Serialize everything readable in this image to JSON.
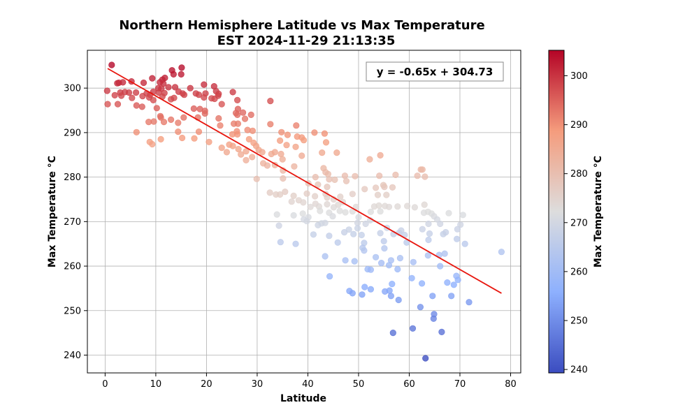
{
  "chart_data": {
    "type": "scatter",
    "title_line1": "Northern Hemisphere Latitude vs Max Temperature",
    "title_line2": "EST 2024-11-29 21:13:35",
    "xlabel": "Latitude",
    "ylabel": "Max Temperature °C",
    "colorbar_label": "Max Temperature °C",
    "xlim": [
      -3.5,
      82
    ],
    "ylim": [
      236,
      308.5
    ],
    "xticks": [
      0,
      10,
      20,
      30,
      40,
      50,
      60,
      70,
      80
    ],
    "yticks": [
      240,
      250,
      260,
      270,
      280,
      290,
      300
    ],
    "colorbar_ticks": [
      240,
      250,
      260,
      270,
      280,
      290,
      300
    ],
    "color_range": [
      239.3,
      305.2
    ],
    "colormap": "coolwarm",
    "grid": true,
    "regression": {
      "slope": -0.65,
      "intercept": 304.73,
      "x_start": 0.5,
      "x_end": 78.2,
      "color": "#e8160e",
      "equation_text": "y = -0.65x + 304.73",
      "annotation_placement": "top-right"
    },
    "points": [
      [
        1.3,
        305.2
      ],
      [
        15.1,
        304.6
      ],
      [
        13.2,
        304.0
      ],
      [
        15.0,
        303.1
      ],
      [
        13.5,
        303.1
      ],
      [
        9.3,
        302.2
      ],
      [
        11.8,
        302.3
      ],
      [
        11.3,
        301.9
      ],
      [
        5.2,
        301.5
      ],
      [
        3.5,
        301.3
      ],
      [
        2.7,
        301.2
      ],
      [
        2.4,
        301.1
      ],
      [
        7.6,
        301.2
      ],
      [
        10.8,
        301.3
      ],
      [
        11.5,
        301.0
      ],
      [
        12.5,
        300.2
      ],
      [
        13.8,
        300.2
      ],
      [
        10.5,
        300.0
      ],
      [
        11.1,
        299.9
      ],
      [
        16.8,
        300.0
      ],
      [
        19.5,
        300.8
      ],
      [
        21.5,
        300.4
      ],
      [
        0.4,
        299.4
      ],
      [
        3.0,
        299.0
      ],
      [
        3.9,
        299.1
      ],
      [
        4.7,
        299.0
      ],
      [
        6.1,
        299.0
      ],
      [
        8.2,
        298.8
      ],
      [
        8.9,
        298.5
      ],
      [
        9.5,
        299.2
      ],
      [
        10.6,
        299.0
      ],
      [
        11.7,
        298.9
      ],
      [
        14.5,
        299.2
      ],
      [
        15.3,
        298.8
      ],
      [
        17.9,
        298.8
      ],
      [
        19.8,
        298.8
      ],
      [
        21.9,
        299.3
      ],
      [
        22.4,
        298.7
      ],
      [
        25.2,
        299.1
      ],
      [
        1.9,
        298.4
      ],
      [
        3.2,
        298.3
      ],
      [
        5.3,
        297.8
      ],
      [
        7.4,
        298.2
      ],
      [
        8.7,
        297.9
      ],
      [
        9.5,
        297.3
      ],
      [
        11.3,
        298.1
      ],
      [
        13.0,
        297.5
      ],
      [
        13.6,
        297.8
      ],
      [
        15.6,
        298.5
      ],
      [
        18.5,
        298.5
      ],
      [
        19.5,
        297.9
      ],
      [
        21.0,
        297.7
      ],
      [
        21.6,
        297.6
      ],
      [
        22.3,
        298.3
      ],
      [
        23.0,
        296.4
      ],
      [
        32.6,
        297.1
      ],
      [
        0.5,
        296.4
      ],
      [
        2.5,
        296.4
      ],
      [
        6.2,
        296.1
      ],
      [
        7.3,
        295.8
      ],
      [
        10.2,
        295.5
      ],
      [
        17.5,
        295.4
      ],
      [
        18.7,
        295.3
      ],
      [
        19.7,
        294.9
      ],
      [
        19.7,
        294.3
      ],
      [
        26.1,
        297.3
      ],
      [
        26.2,
        295.3
      ],
      [
        27.2,
        294.5
      ],
      [
        25.8,
        294.4
      ],
      [
        26.1,
        294.0
      ],
      [
        27.6,
        293.1
      ],
      [
        28.8,
        294.0
      ],
      [
        22.4,
        293.2
      ],
      [
        18.3,
        293.4
      ],
      [
        10.9,
        293.7
      ],
      [
        11.0,
        293.4
      ],
      [
        11.6,
        292.4
      ],
      [
        13.0,
        292.9
      ],
      [
        14.4,
        292.2
      ],
      [
        15.5,
        293.4
      ],
      [
        8.6,
        292.4
      ],
      [
        9.6,
        292.5
      ],
      [
        25.4,
        292.0
      ],
      [
        26.2,
        292.0
      ],
      [
        32.6,
        291.9
      ],
      [
        37.7,
        291.6
      ],
      [
        22.7,
        291.6
      ],
      [
        28.1,
        290.6
      ],
      [
        14.4,
        290.2
      ],
      [
        26.0,
        290.3
      ],
      [
        6.2,
        290.1
      ],
      [
        18.5,
        290.2
      ],
      [
        29.1,
        290.4
      ],
      [
        34.8,
        290.1
      ],
      [
        41.3,
        290.0
      ],
      [
        43.3,
        289.8
      ],
      [
        25.1,
        289.6
      ],
      [
        26.1,
        289.6
      ],
      [
        36.0,
        289.5
      ],
      [
        37.9,
        289.1
      ],
      [
        38.8,
        288.9
      ],
      [
        39.2,
        288.3
      ],
      [
        15.2,
        288.8
      ],
      [
        17.6,
        288.7
      ],
      [
        11.0,
        288.5
      ],
      [
        8.8,
        287.9
      ],
      [
        9.3,
        287.4
      ],
      [
        20.5,
        287.9
      ],
      [
        28.4,
        288.5
      ],
      [
        29.3,
        287.7
      ],
      [
        34.5,
        288.2
      ],
      [
        43.6,
        287.8
      ],
      [
        24.5,
        287.3
      ],
      [
        25.2,
        287.0
      ],
      [
        29.8,
        287.0
      ],
      [
        30.3,
        286.1
      ],
      [
        35.8,
        287.2
      ],
      [
        37.6,
        286.8
      ],
      [
        26.3,
        286.3
      ],
      [
        27.8,
        285.8
      ],
      [
        31.0,
        285.6
      ],
      [
        32.8,
        285.2
      ],
      [
        33.5,
        285.6
      ],
      [
        24.0,
        285.6
      ],
      [
        23.0,
        286.6
      ],
      [
        26.8,
        285.1
      ],
      [
        34.7,
        285.2
      ],
      [
        42.8,
        285.5
      ],
      [
        45.7,
        285.5
      ],
      [
        54.3,
        284.9
      ],
      [
        38.8,
        284.8
      ],
      [
        27.8,
        283.8
      ],
      [
        29.0,
        284.5
      ],
      [
        35.0,
        284.0
      ],
      [
        31.2,
        283.1
      ],
      [
        32.0,
        282.6
      ],
      [
        33.5,
        282.7
      ],
      [
        52.2,
        284.0
      ],
      [
        35.1,
        281.5
      ],
      [
        37.3,
        282.4
      ],
      [
        43.1,
        282.0
      ],
      [
        44.0,
        280.7
      ],
      [
        43.5,
        281.1
      ],
      [
        47.3,
        280.3
      ],
      [
        49.3,
        280.2
      ],
      [
        54.1,
        280.3
      ],
      [
        57.3,
        280.5
      ],
      [
        62.3,
        281.7
      ],
      [
        62.6,
        281.7
      ],
      [
        61.6,
        280.3
      ],
      [
        63.1,
        280.1
      ],
      [
        41.5,
        280.0
      ],
      [
        44.2,
        279.5
      ],
      [
        45.3,
        279.4
      ],
      [
        47.6,
        279.1
      ],
      [
        29.9,
        279.6
      ],
      [
        35.1,
        279.7
      ],
      [
        40.1,
        278.6
      ],
      [
        42.0,
        278.3
      ],
      [
        43.8,
        277.8
      ],
      [
        51.2,
        277.3
      ],
      [
        55.1,
        277.8
      ],
      [
        56.7,
        277.7
      ],
      [
        53.4,
        277.6
      ],
      [
        54.9,
        278.2
      ],
      [
        32.5,
        276.5
      ],
      [
        33.7,
        276.1
      ],
      [
        34.5,
        276.1
      ],
      [
        35.5,
        276.7
      ],
      [
        37.2,
        275.8
      ],
      [
        39.8,
        276.3
      ],
      [
        41.4,
        275.7
      ],
      [
        43.5,
        276.2
      ],
      [
        46.4,
        275.6
      ],
      [
        43.8,
        275.4
      ],
      [
        45.1,
        275.0
      ],
      [
        48.8,
        276.2
      ],
      [
        53.8,
        276.0
      ],
      [
        55.5,
        276.0
      ],
      [
        43.8,
        273.9
      ],
      [
        41.5,
        274.0
      ],
      [
        46.0,
        273.8
      ],
      [
        46.9,
        274.4
      ],
      [
        36.8,
        274.5
      ],
      [
        38.2,
        274.8
      ],
      [
        39.1,
        274.3
      ],
      [
        40.5,
        273.3
      ],
      [
        42.2,
        273.4
      ],
      [
        45.1,
        273.2
      ],
      [
        49.5,
        273.3
      ],
      [
        53.1,
        273.4
      ],
      [
        55.2,
        273.5
      ],
      [
        54.0,
        273.6
      ],
      [
        56.0,
        273.3
      ],
      [
        57.7,
        273.4
      ],
      [
        59.6,
        273.5
      ],
      [
        63.0,
        273.8
      ],
      [
        61.1,
        273.2
      ],
      [
        42.4,
        272.4
      ],
      [
        44.2,
        272.0
      ],
      [
        46.3,
        272.4
      ],
      [
        47.4,
        272.1
      ],
      [
        48.8,
        272.3
      ],
      [
        52.4,
        272.2
      ],
      [
        54.3,
        272.3
      ],
      [
        62.9,
        272.0
      ],
      [
        63.7,
        272.2
      ],
      [
        64.4,
        271.8
      ],
      [
        67.8,
        271.9
      ],
      [
        70.6,
        271.5
      ],
      [
        33.9,
        271.6
      ],
      [
        37.2,
        271.4
      ],
      [
        39.0,
        271.8
      ],
      [
        40.1,
        271.0
      ],
      [
        44.9,
        271.2
      ],
      [
        50.0,
        271.0
      ],
      [
        52.3,
        270.3
      ],
      [
        64.9,
        271.2
      ],
      [
        65.5,
        270.5
      ],
      [
        39.2,
        270.5
      ],
      [
        39.8,
        270.1
      ],
      [
        42.7,
        269.6
      ],
      [
        43.4,
        269.7
      ],
      [
        49.8,
        269.7
      ],
      [
        51.4,
        269.5
      ],
      [
        63.8,
        269.5
      ],
      [
        66.1,
        269.5
      ],
      [
        70.1,
        269.3
      ],
      [
        34.3,
        269.1
      ],
      [
        42.0,
        269.2
      ],
      [
        48.1,
        268.2
      ],
      [
        49.8,
        268.5
      ],
      [
        55.6,
        268.6
      ],
      [
        58.4,
        268.0
      ],
      [
        62.6,
        268.3
      ],
      [
        69.5,
        268.3
      ],
      [
        41.1,
        267.1
      ],
      [
        44.2,
        266.8
      ],
      [
        47.2,
        267.6
      ],
      [
        49.0,
        267.2
      ],
      [
        50.6,
        267.0
      ],
      [
        54.3,
        267.4
      ],
      [
        56.9,
        267.2
      ],
      [
        58.0,
        267.5
      ],
      [
        59.1,
        267.0
      ],
      [
        64.0,
        267.3
      ],
      [
        66.7,
        267.2
      ],
      [
        67.2,
        267.6
      ],
      [
        34.6,
        265.4
      ],
      [
        37.6,
        265.0
      ],
      [
        45.9,
        265.3
      ],
      [
        51.1,
        265.2
      ],
      [
        55.0,
        265.6
      ],
      [
        59.5,
        265.3
      ],
      [
        63.8,
        265.9
      ],
      [
        69.4,
        266.1
      ],
      [
        71.0,
        265.0
      ],
      [
        55.1,
        264.0
      ],
      [
        51.1,
        263.5
      ],
      [
        50.8,
        264.1
      ],
      [
        43.4,
        262.2
      ],
      [
        47.4,
        261.3
      ],
      [
        49.2,
        261.1
      ],
      [
        53.4,
        262.0
      ],
      [
        56.4,
        261.3
      ],
      [
        58.2,
        261.8
      ],
      [
        60.8,
        260.9
      ],
      [
        63.7,
        262.4
      ],
      [
        65.9,
        262.5
      ],
      [
        67.0,
        262.8
      ],
      [
        78.2,
        263.2
      ],
      [
        54.5,
        260.7
      ],
      [
        56.0,
        260.2
      ],
      [
        57.7,
        259.3
      ],
      [
        51.8,
        259.3
      ],
      [
        52.4,
        259.2
      ],
      [
        66.1,
        260.0
      ],
      [
        44.3,
        257.7
      ],
      [
        60.5,
        257.3
      ],
      [
        69.3,
        257.8
      ],
      [
        69.6,
        256.9
      ],
      [
        67.5,
        256.3
      ],
      [
        68.8,
        255.8
      ],
      [
        56.6,
        256.0
      ],
      [
        62.5,
        256.1
      ],
      [
        51.2,
        255.3
      ],
      [
        52.4,
        254.8
      ],
      [
        48.2,
        254.4
      ],
      [
        48.8,
        253.9
      ],
      [
        50.7,
        253.6
      ],
      [
        55.2,
        254.3
      ],
      [
        56.1,
        254.5
      ],
      [
        56.4,
        253.3
      ],
      [
        57.9,
        252.4
      ],
      [
        64.6,
        253.3
      ],
      [
        68.3,
        253.3
      ],
      [
        71.8,
        251.9
      ],
      [
        62.2,
        250.8
      ],
      [
        64.9,
        249.2
      ],
      [
        64.8,
        248.2
      ],
      [
        60.7,
        246.0
      ],
      [
        56.8,
        245.0
      ],
      [
        66.4,
        245.2
      ],
      [
        63.2,
        239.3
      ]
    ]
  }
}
